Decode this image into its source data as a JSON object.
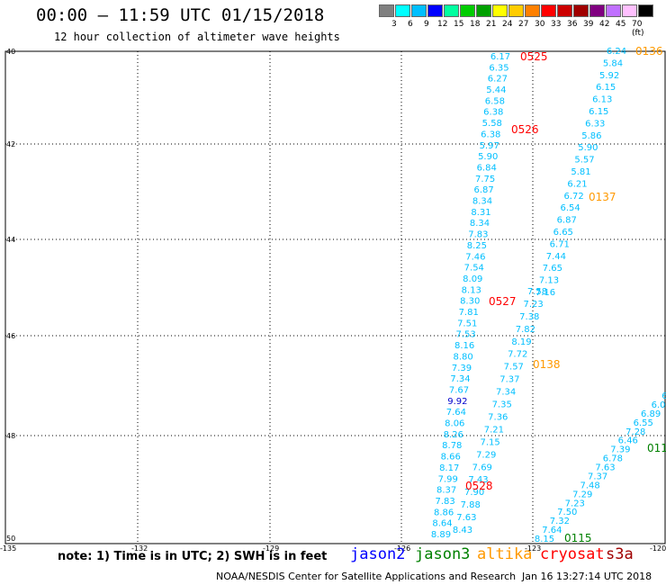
{
  "title": "00:00 – 11:59 UTC 01/15/2018",
  "subtitle": "12 hour collection of altimeter wave heights",
  "scale": {
    "colors": [
      "#808080",
      "#00ffff",
      "#00bfff",
      "#0000ff",
      "#00ffa0",
      "#00cc00",
      "#00a000",
      "#ffff00",
      "#ffcc00",
      "#ff8000",
      "#ff0000",
      "#cc0000",
      "#a00000",
      "#800080",
      "#c070ff",
      "#ffc0ff",
      "#000000"
    ],
    "labels": [
      "3",
      "6",
      "9",
      "12",
      "15",
      "18",
      "21",
      "24",
      "27",
      "30",
      "33",
      "36",
      "39",
      "42",
      "45",
      "70 (ft)"
    ]
  },
  "axes": {
    "lat_labels": [
      "40",
      "42",
      "44",
      "46",
      "48",
      "50"
    ],
    "lon_labels": [
      "-135",
      "-132",
      "-129",
      "-126",
      "-123",
      "-120"
    ]
  },
  "tracks": [
    {
      "color": "#00bfff",
      "values": [
        "6.17",
        "6.35",
        "6.27",
        "5.44",
        "6.58",
        "6.38",
        "5.58",
        "6.38",
        "5.97",
        "5.90",
        "6.84",
        "7.75",
        "6.87",
        "8.34",
        "8.31",
        "8.34",
        "7.83",
        "8.25",
        "7.46",
        "7.54",
        "8.09",
        "8.13",
        "8.30",
        "7.81",
        "7.51",
        "7.53",
        "8.16",
        "8.80",
        "7.39",
        "7.34",
        "7.67",
        "9.92",
        "7.64",
        "8.06",
        "8.26",
        "8.78",
        "8.66",
        "8.17",
        "7.99",
        "8.37",
        "7.83",
        "8.86",
        "8.64",
        "8.89"
      ]
    },
    {
      "color": "#00bfff",
      "values": [
        "7.58",
        "7.23",
        "7.38",
        "7.82",
        "8.19",
        "7.72",
        "7.57",
        "7.37",
        "7.34",
        "7.35",
        "7.36",
        "7.21",
        "7.15",
        "7.29",
        "7.69",
        "7.43",
        "7.90",
        "7.88",
        "7.63",
        "8.43"
      ]
    },
    {
      "color": "#00bfff",
      "values": [
        "6.24",
        "5.84",
        "5.92",
        "6.15",
        "6.13",
        "6.15",
        "6.33",
        "5.86",
        "5.90",
        "5.57",
        "5.81",
        "6.21",
        "6.72",
        "6.54",
        "6.87",
        "6.65",
        "6.71",
        "7.44",
        "7.65",
        "7.13",
        "7.16"
      ]
    },
    {
      "color": "#00bfff",
      "values": [
        "6.",
        "6.0",
        "6.89",
        "6.55",
        "7.28",
        "6.46",
        "7.39",
        "6.78",
        "7.63",
        "7.37",
        "7.48",
        "7.29",
        "7.23",
        "7.50",
        "7.32",
        "7.64",
        "8.15"
      ]
    }
  ],
  "pass_labels": [
    {
      "text": "0525",
      "color": "#ff0000"
    },
    {
      "text": "0526",
      "color": "#ff0000"
    },
    {
      "text": "0527",
      "color": "#ff0000"
    },
    {
      "text": "0528",
      "color": "#ff0000"
    },
    {
      "text": "0136",
      "color": "#ff9900"
    },
    {
      "text": "0137",
      "color": "#ff9900"
    },
    {
      "text": "0138",
      "color": "#ff9900"
    },
    {
      "text": "0115",
      "color": "#008000"
    },
    {
      "text": "011",
      "color": "#008000"
    }
  ],
  "note": "note: 1) Time is in UTC; 2) SWH is in feet",
  "satellites": [
    {
      "name": "jason2",
      "color": "#0000ff"
    },
    {
      "name": "jason3",
      "color": "#008000"
    },
    {
      "name": "altika",
      "color": "#ff9900"
    },
    {
      "name": "cryosat",
      "color": "#ff0000"
    },
    {
      "name": "s3a",
      "color": "#a00000"
    }
  ],
  "credit": "NOAA/NESDIS Center for Satellite Applications and Research",
  "stamp": "Jan 16 13:27:14 UTC 2018"
}
